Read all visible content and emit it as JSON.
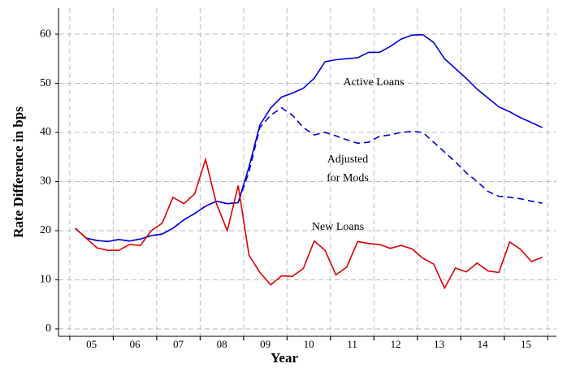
{
  "chart_data": {
    "type": "line",
    "xlabel": "Year",
    "ylabel": "Rate Difference in bps",
    "x": [
      2005.125,
      2005.375,
      2005.625,
      2005.875,
      2006.125,
      2006.375,
      2006.625,
      2006.875,
      2007.125,
      2007.375,
      2007.625,
      2007.875,
      2008.125,
      2008.375,
      2008.625,
      2008.875,
      2009.125,
      2009.375,
      2009.625,
      2009.875,
      2010.125,
      2010.375,
      2010.625,
      2010.875,
      2011.125,
      2011.375,
      2011.625,
      2011.875,
      2012.125,
      2012.375,
      2012.625,
      2012.875,
      2013.125,
      2013.375,
      2013.625,
      2013.875,
      2014.125,
      2014.375,
      2014.625,
      2014.875,
      2015.125,
      2015.375,
      2015.625,
      2015.875
    ],
    "series": [
      {
        "color": "#0000dd",
        "dash": false,
        "values": [
          20.5,
          18.5,
          18,
          17.8,
          18.2,
          17.9,
          18.3,
          19,
          19.3,
          20.5,
          22.2,
          23.5,
          25,
          26,
          25.5,
          25.7,
          33,
          41.5,
          45,
          47.2,
          48,
          49,
          51,
          54.4,
          54.8,
          55,
          55.2,
          56.3,
          56.3,
          57.5,
          59,
          59.8,
          59.9,
          58.3,
          55,
          53,
          51,
          48.8,
          47,
          45.2,
          44.2,
          43,
          42,
          41
        ]
      },
      {
        "color": "#0000dd",
        "dash": true,
        "values": [
          20.5,
          18.5,
          18,
          17.8,
          18.2,
          17.9,
          18.3,
          19,
          19.3,
          20.5,
          22.2,
          23.5,
          25,
          26,
          25.5,
          25.7,
          32,
          41,
          43.5,
          45,
          43.5,
          41,
          39.5,
          40,
          39.3,
          38.5,
          37.8,
          38,
          39.2,
          39.5,
          40,
          40.2,
          40,
          38,
          36,
          34,
          31.8,
          30,
          28,
          27,
          26.8,
          26.5,
          26,
          25.6
        ]
      },
      {
        "color": "#dd0000",
        "dash": false,
        "values": [
          20.5,
          18.5,
          16.5,
          16,
          16,
          17.2,
          17,
          20,
          21.5,
          26.8,
          25.5,
          27.5,
          34.5,
          25.5,
          20,
          29.2,
          15,
          11.5,
          9,
          10.8,
          10.7,
          12.3,
          17.9,
          16,
          11,
          12.6,
          17.8,
          17.4,
          17.2,
          16.4,
          17,
          16.3,
          14.4,
          13.2,
          8.3,
          12.4,
          11.6,
          13.4,
          11.8,
          11.5,
          17.7,
          16.2,
          13.7,
          14.6
        ]
      }
    ],
    "annotations": [
      "Active Loans",
      "Adjusted",
      "for Mods",
      "New Loans"
    ],
    "xlim": [
      2004.74,
      2016.2
    ],
    "ylim": [
      -1.5,
      65.3
    ],
    "xticks": [
      {
        "value": 2005.5,
        "label": "05"
      },
      {
        "value": 2006.5,
        "label": "06"
      },
      {
        "value": 2007.5,
        "label": "07"
      },
      {
        "value": 2008.5,
        "label": "08"
      },
      {
        "value": 2009.5,
        "label": "09"
      },
      {
        "value": 2010.5,
        "label": "10"
      },
      {
        "value": 2011.5,
        "label": "11"
      },
      {
        "value": 2012.5,
        "label": "12"
      },
      {
        "value": 2013.5,
        "label": "13"
      },
      {
        "value": 2014.5,
        "label": "14"
      },
      {
        "value": 2015.5,
        "label": "15"
      }
    ],
    "yticks": [
      0,
      10,
      20,
      30,
      40,
      50,
      60
    ],
    "grid": true
  }
}
